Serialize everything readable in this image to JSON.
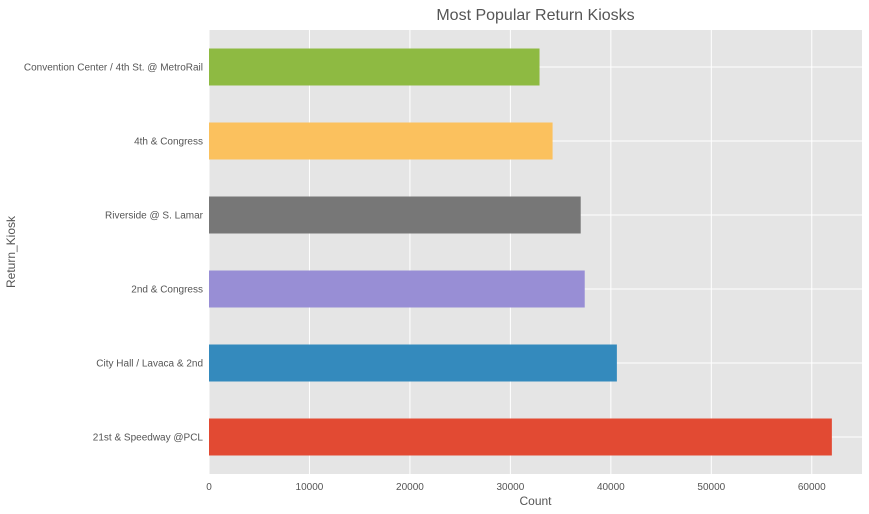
{
  "chart_data": {
    "type": "bar",
    "orientation": "horizontal",
    "title": "Most Popular Return Kiosks",
    "xlabel": "Count",
    "ylabel": "Return_Kiosk",
    "categories": [
      "21st & Speedway @PCL",
      "City Hall / Lavaca & 2nd",
      "2nd & Congress",
      "Riverside @ S. Lamar",
      "4th & Congress",
      "Convention Center / 4th St. @ MetroRail"
    ],
    "values": [
      62000,
      40600,
      37400,
      37000,
      34200,
      32900
    ],
    "colors": [
      "#E24A33",
      "#348ABD",
      "#988ED5",
      "#777777",
      "#FBC15E",
      "#8EBA42"
    ],
    "xlim": [
      0,
      65000
    ],
    "xticks": [
      0,
      10000,
      20000,
      30000,
      40000,
      50000,
      60000
    ],
    "xtick_labels": [
      "0",
      "10000",
      "20000",
      "30000",
      "40000",
      "50000",
      "60000"
    ],
    "grid": true,
    "background": "#E5E5E5"
  }
}
